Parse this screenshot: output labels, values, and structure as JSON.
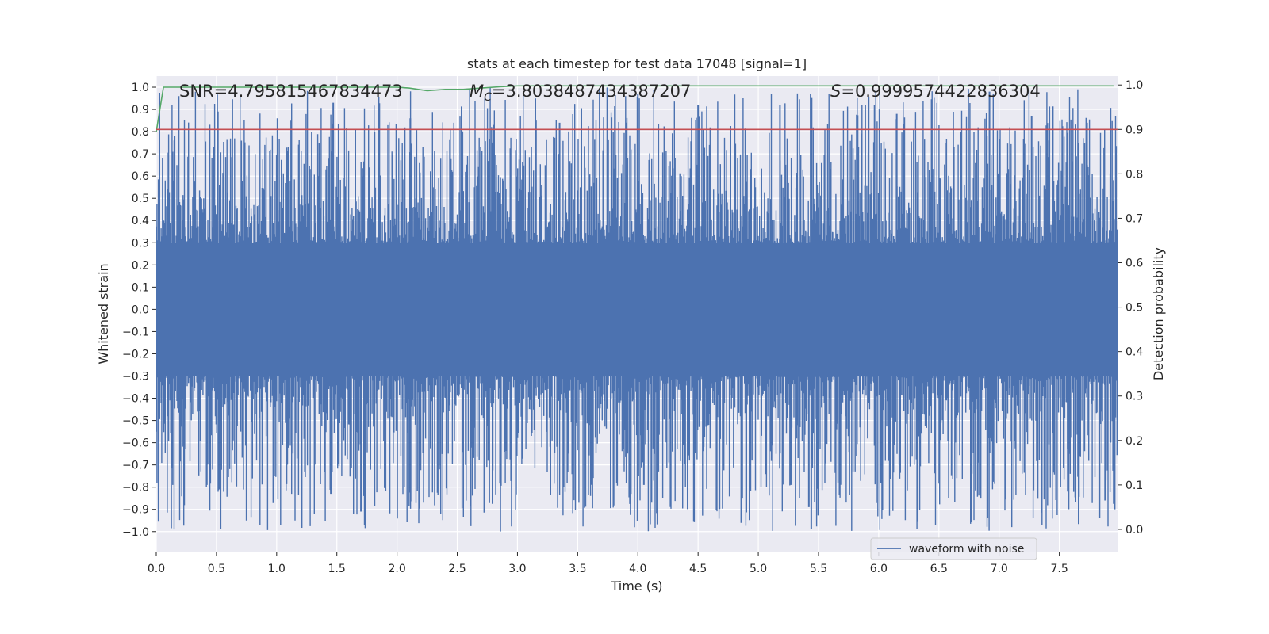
{
  "chart_data": {
    "type": "line",
    "title": "stats at each timestep for test data 17048 [signal=1]",
    "xlabel": "Time (s)",
    "ylabel_left": "Whitened strain",
    "ylabel_right": "Detection probability",
    "xlim": [
      0.0,
      7.99
    ],
    "ylim_left": [
      -1.09,
      1.05
    ],
    "ylim_right": [
      -0.05,
      1.02
    ],
    "x_ticks": [
      0.0,
      0.5,
      1.0,
      1.5,
      2.0,
      2.5,
      3.0,
      3.5,
      4.0,
      4.5,
      5.0,
      5.5,
      6.0,
      6.5,
      7.0,
      7.5
    ],
    "x_tick_labels": [
      "0.0",
      "0.5",
      "1.0",
      "1.5",
      "2.0",
      "2.5",
      "3.0",
      "3.5",
      "4.0",
      "4.5",
      "5.0",
      "5.5",
      "6.0",
      "6.5",
      "7.0",
      "7.5"
    ],
    "y_left_ticks": [
      1.0,
      0.9,
      0.8,
      0.7,
      0.6,
      0.5,
      0.4,
      0.3,
      0.2,
      0.1,
      0.0,
      -0.1,
      -0.2,
      -0.3,
      -0.4,
      -0.5,
      -0.6,
      -0.7,
      -0.8,
      -0.9,
      -1.0
    ],
    "y_left_tick_labels": [
      "1.0",
      "0.9",
      "0.8",
      "0.7",
      "0.6",
      "0.5",
      "0.4",
      "0.3",
      "0.2",
      "0.1",
      "0.0",
      "−0.1",
      "−0.2",
      "−0.3",
      "−0.4",
      "−0.5",
      "−0.6",
      "−0.7",
      "−0.8",
      "−0.9",
      "−1.0"
    ],
    "y_right_ticks": [
      1.0,
      0.9,
      0.8,
      0.7,
      0.6,
      0.5,
      0.4,
      0.3,
      0.2,
      0.1,
      0.0
    ],
    "y_right_tick_labels": [
      "1.0",
      "0.9",
      "0.8",
      "0.7",
      "0.6",
      "0.5",
      "0.4",
      "0.3",
      "0.2",
      "0.1",
      "0.0"
    ],
    "annotations": {
      "snr": "SNR=4.795815467834473",
      "mc_symbol": "M",
      "mc_sub": "C",
      "mc_value": "=3.8038487434387207",
      "s_symbol": "S",
      "s_value": "=0.9999574422836304"
    },
    "legend": {
      "label": "waveform with noise",
      "loc": "lower-right"
    },
    "series": [
      {
        "name": "waveform with noise",
        "axis": "left",
        "color": "#4c72b0",
        "kind": "noise-envelope",
        "core_band": [
          -0.2,
          0.2
        ],
        "typical_upper_peak": 0.5,
        "typical_lower_peak": -0.5,
        "spikes": [
          {
            "x": 0.15,
            "y": 0.76
          },
          {
            "x": 0.48,
            "y": 0.73
          },
          {
            "x": 1.47,
            "y": 0.93
          },
          {
            "x": 2.11,
            "y": 0.86
          },
          {
            "x": 2.8,
            "y": 0.83
          },
          {
            "x": 3.35,
            "y": 0.84
          },
          {
            "x": 4.0,
            "y": 0.97
          },
          {
            "x": 4.5,
            "y": 0.92
          },
          {
            "x": 5.18,
            "y": 0.92
          },
          {
            "x": 6.15,
            "y": 0.88
          },
          {
            "x": 6.92,
            "y": 0.98
          },
          {
            "x": 7.27,
            "y": 0.87
          },
          {
            "x": 7.73,
            "y": 0.84
          },
          {
            "x": 0.75,
            "y": -0.95
          },
          {
            "x": 1.7,
            "y": -0.91
          },
          {
            "x": 1.45,
            "y": -0.83
          },
          {
            "x": 0.42,
            "y": -0.79
          },
          {
            "x": 2.35,
            "y": -0.72
          },
          {
            "x": 4.05,
            "y": -0.79
          },
          {
            "x": 5.42,
            "y": -0.89
          },
          {
            "x": 5.44,
            "y": -0.99
          },
          {
            "x": 5.27,
            "y": -0.79
          },
          {
            "x": 6.02,
            "y": -0.78
          },
          {
            "x": 7.57,
            "y": -0.82
          },
          {
            "x": 7.88,
            "y": -0.86
          }
        ]
      },
      {
        "name": "detection probability",
        "axis": "right",
        "color": "#55a868",
        "x": [
          0.0,
          0.06,
          0.5,
          1.0,
          1.5,
          2.0,
          2.1,
          2.25,
          2.4,
          2.55,
          2.7,
          2.85,
          3.0,
          4.0,
          5.0,
          6.0,
          7.0,
          7.95
        ],
        "y": [
          0.895,
          0.995,
          0.995,
          0.995,
          0.995,
          0.995,
          0.993,
          0.987,
          0.99,
          0.99,
          0.993,
          0.996,
          0.998,
          0.998,
          0.998,
          0.998,
          0.998,
          0.998
        ]
      },
      {
        "name": "threshold",
        "axis": "right",
        "color": "#c44e52",
        "x": [
          0.0,
          7.99
        ],
        "y": [
          0.9,
          0.9
        ]
      }
    ]
  }
}
